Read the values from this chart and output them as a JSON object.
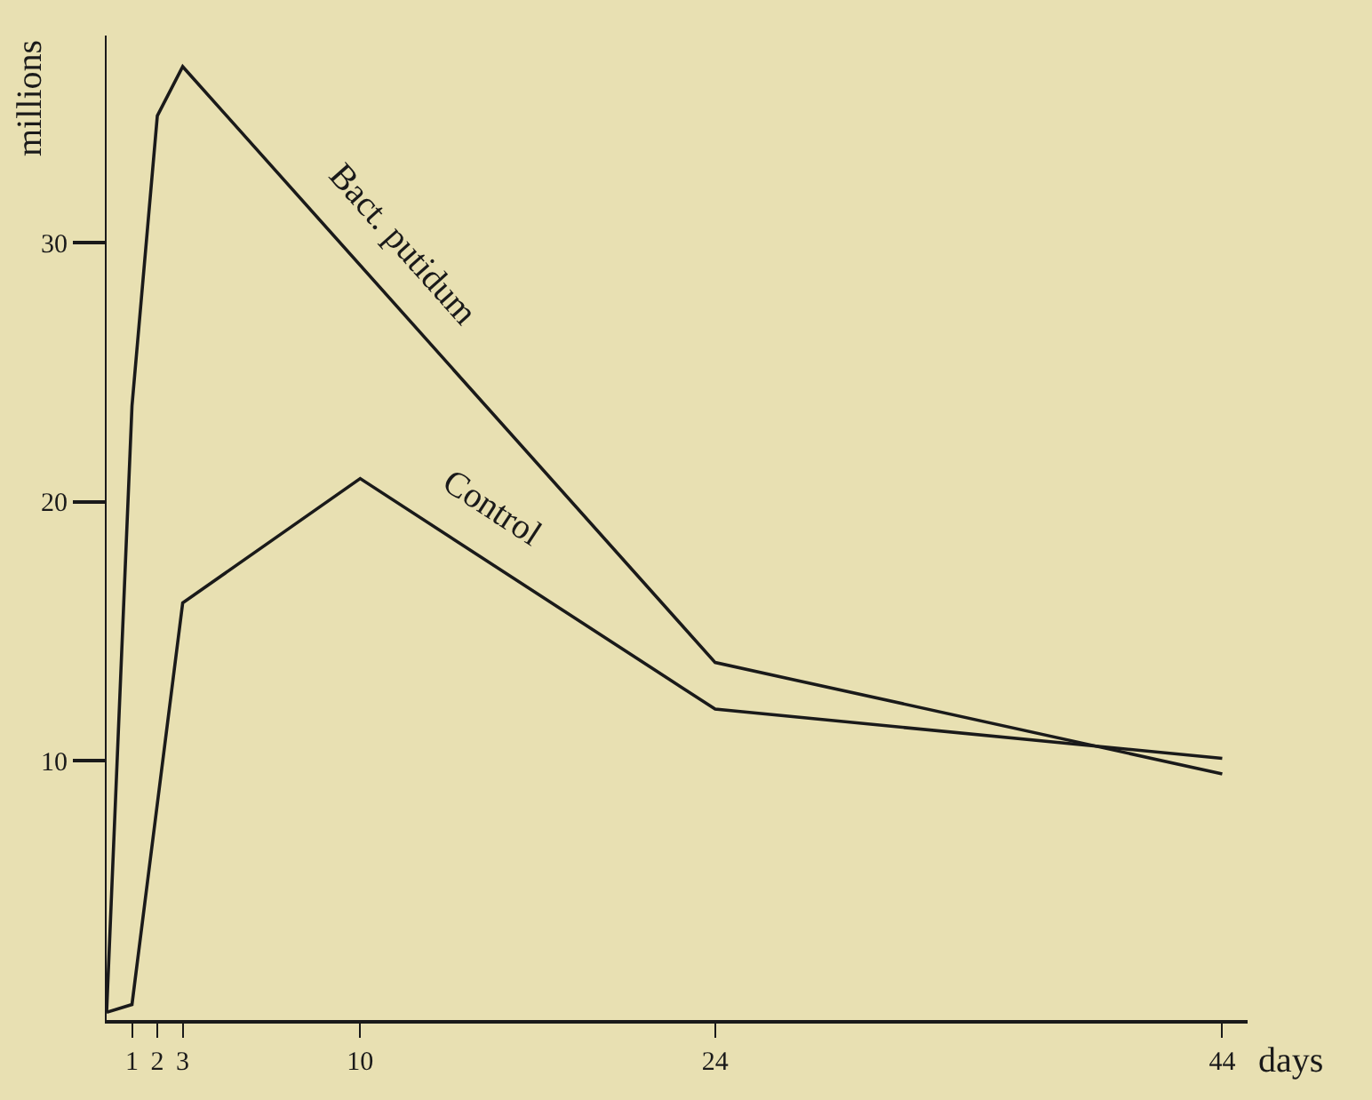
{
  "chart_data": {
    "type": "line",
    "xlabel": "days",
    "ylabel": "millions",
    "series": [
      {
        "name": "Bact. putidum",
        "color": "#1a1a1a",
        "x": [
          0,
          1,
          2,
          3,
          24,
          44
        ],
        "values": [
          0.3,
          23.7,
          34.9,
          36.8,
          13.8,
          9.5
        ]
      },
      {
        "name": "Control",
        "color": "#1a1a1a",
        "x": [
          0,
          1,
          3,
          10,
          24,
          44
        ],
        "values": [
          0.3,
          0.6,
          16.1,
          20.9,
          12.0,
          10.1
        ]
      }
    ],
    "xlim": [
      0,
      45
    ],
    "xticks": [
      1,
      2,
      3,
      10,
      24,
      44
    ],
    "ylim": [
      0,
      38
    ],
    "yticks": [
      10,
      20,
      30
    ],
    "grid": false,
    "legend": false,
    "marker": "none",
    "line_style": "solid"
  }
}
